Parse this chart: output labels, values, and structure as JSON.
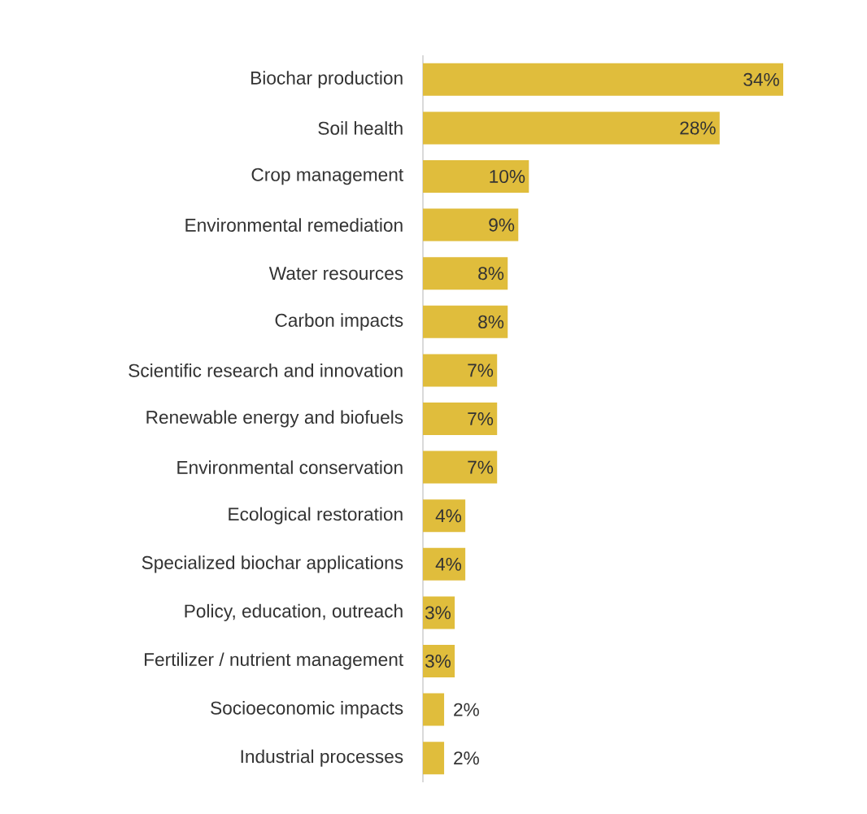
{
  "chart_data": {
    "type": "bar",
    "orientation": "horizontal",
    "categories": [
      "Biochar production",
      "Soil health",
      "Crop management",
      "Environmental remediation",
      "Water resources",
      "Carbon impacts",
      "Scientific research and innovation",
      "Renewable energy and biofuels",
      "Environmental conservation",
      "Ecological restoration",
      "Specialized biochar applications",
      "Policy, education, outreach",
      "Fertilizer / nutrient management",
      "Socioeconomic impacts",
      "Industrial processes"
    ],
    "values": [
      34,
      28,
      10,
      9,
      8,
      8,
      7,
      7,
      7,
      4,
      4,
      3,
      3,
      2,
      2
    ],
    "value_labels": [
      "34%",
      "28%",
      "10%",
      "9%",
      "8%",
      "8%",
      "7%",
      "7%",
      "7%",
      "4%",
      "4%",
      "3%",
      "3%",
      "2%",
      "2%"
    ],
    "color": "#e0bd3c"
  }
}
